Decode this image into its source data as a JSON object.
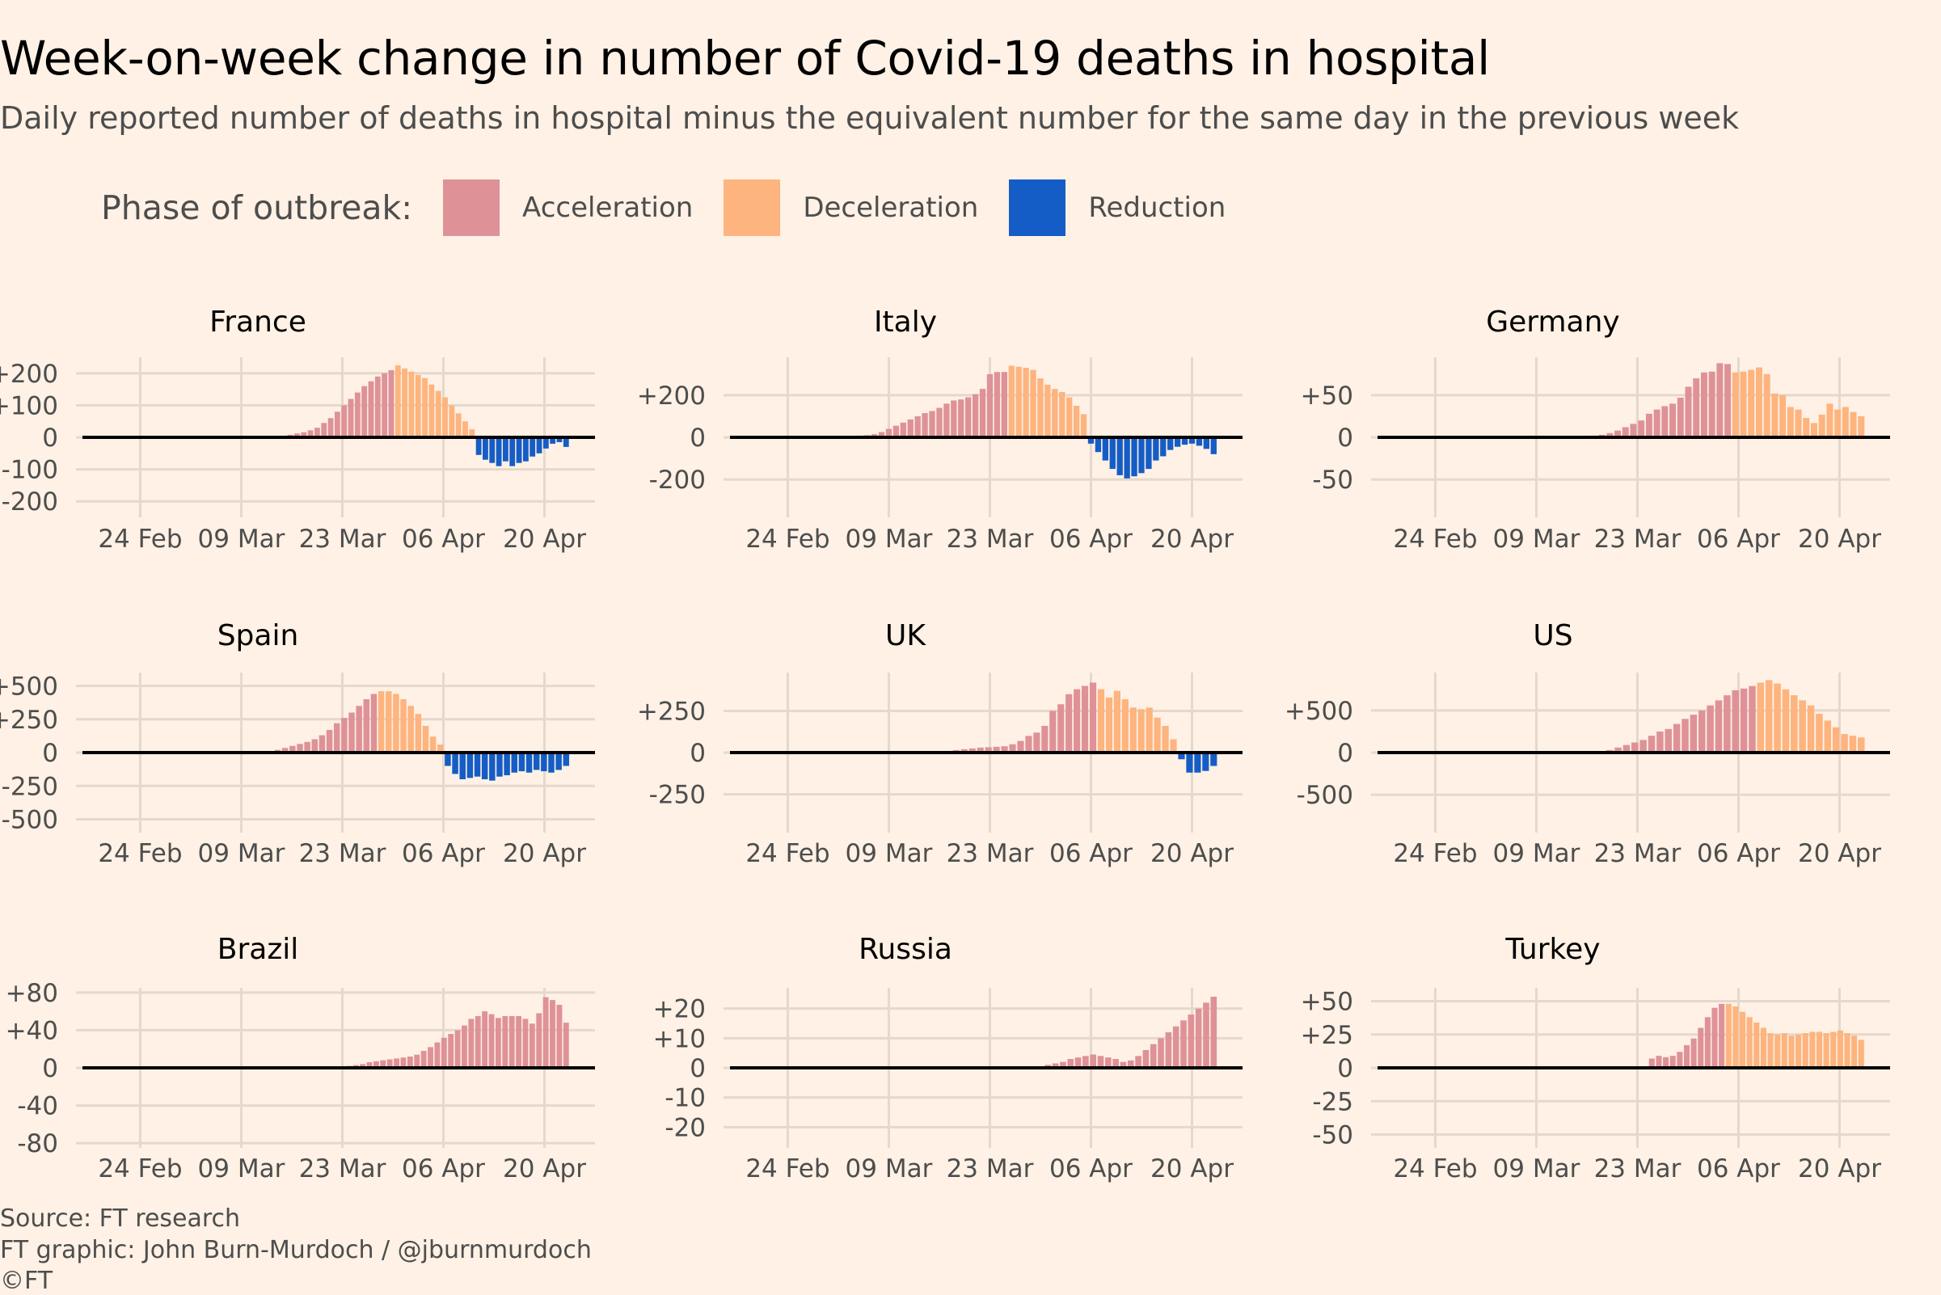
{
  "title": "Week-on-week change in number of Covid-19 deaths in hospital",
  "subtitle": "Daily reported number of deaths in hospital minus the equivalent number for the same day in the previous week",
  "legend": {
    "title": "Phase of outbreak:",
    "items": [
      {
        "label": "Acceleration",
        "color": "#de9298"
      },
      {
        "label": "Deceleration",
        "color": "#fdb47e"
      },
      {
        "label": "Reduction",
        "color": "#155dc6"
      }
    ]
  },
  "colors": {
    "background": "#fff1e5",
    "grid": "#e5d8cc",
    "zero": "#000000",
    "text": "#4d4d4d"
  },
  "footer": {
    "source": "Source: FT research",
    "credit": "FT graphic: John Burn-Murdoch / @jburnmurdoch",
    "copyright": "©FT"
  },
  "chart_data": [
    {
      "type": "bar",
      "title": "France",
      "xlabel": "",
      "ylabel": "",
      "x_ticks": [
        "24 Feb",
        "09 Mar",
        "23 Mar",
        "06 Apr",
        "20 Apr"
      ],
      "y_ticks": [
        "+200",
        "+100",
        "0",
        "-100",
        "-200"
      ],
      "ylim": [
        -250,
        250
      ],
      "grid": true,
      "x_dates": [
        "2020-03-13",
        "2020-04-23"
      ],
      "acceleration": [
        2,
        4,
        5,
        8,
        12,
        16,
        22,
        30,
        45,
        60,
        80,
        100,
        120,
        140,
        160,
        175,
        190,
        200,
        210
      ],
      "deceleration": [
        225,
        215,
        205,
        195,
        185,
        165,
        145,
        125,
        100,
        75,
        50,
        25
      ],
      "reduction": [
        -55,
        -70,
        -80,
        -90,
        -75,
        -90,
        -80,
        -75,
        -60,
        -50,
        -35,
        -20,
        -15,
        -30
      ]
    },
    {
      "type": "bar",
      "title": "Italy",
      "xlabel": "",
      "ylabel": "",
      "x_ticks": [
        "24 Feb",
        "09 Mar",
        "23 Mar",
        "06 Apr",
        "20 Apr"
      ],
      "y_ticks": [
        "+200",
        "0",
        "-200"
      ],
      "ylim": [
        -380,
        380
      ],
      "grid": true,
      "x_dates": [
        "2020-03-03",
        "2020-04-23"
      ],
      "acceleration": [
        3,
        5,
        8,
        10,
        15,
        25,
        40,
        55,
        70,
        85,
        100,
        115,
        125,
        140,
        160,
        175,
        180,
        190,
        205,
        230,
        300,
        310,
        310
      ],
      "deceleration": [
        340,
        335,
        330,
        320,
        280,
        250,
        230,
        215,
        190,
        150,
        110
      ],
      "reduction": [
        -30,
        -70,
        -110,
        -150,
        -180,
        -195,
        -185,
        -170,
        -150,
        -110,
        -90,
        -60,
        -45,
        -35,
        -30,
        -40,
        -55,
        -80
      ]
    },
    {
      "type": "bar",
      "title": "Germany",
      "xlabel": "",
      "ylabel": "",
      "x_ticks": [
        "24 Feb",
        "09 Mar",
        "23 Mar",
        "06 Apr",
        "20 Apr"
      ],
      "y_ticks": [
        "+50",
        "0",
        "-50"
      ],
      "ylim": [
        -95,
        95
      ],
      "grid": true,
      "x_dates": [
        "2020-03-17",
        "2020-04-23"
      ],
      "acceleration": [
        2,
        3,
        5,
        8,
        12,
        16,
        20,
        28,
        33,
        37,
        40,
        47,
        60,
        70,
        77,
        78,
        88,
        87
      ],
      "deceleration": [
        77,
        78,
        80,
        83,
        75,
        52,
        50,
        36,
        33,
        23,
        17,
        27,
        40,
        33,
        36,
        30,
        25
      ]
    },
    {
      "type": "bar",
      "title": "Spain",
      "xlabel": "",
      "ylabel": "",
      "x_ticks": [
        "24 Feb",
        "09 Mar",
        "23 Mar",
        "06 Apr",
        "20 Apr"
      ],
      "y_ticks": [
        "+500",
        "+250",
        "0",
        "-250",
        "-500"
      ],
      "ylim": [
        -600,
        600
      ],
      "grid": true,
      "x_dates": [
        "2020-03-12",
        "2020-04-23"
      ],
      "acceleration": [
        5,
        10,
        20,
        35,
        50,
        65,
        80,
        100,
        130,
        170,
        220,
        260,
        300,
        350,
        400,
        440
      ],
      "deceleration": [
        460,
        460,
        440,
        400,
        350,
        290,
        200,
        120,
        60
      ],
      "reduction": [
        -100,
        -160,
        -200,
        -190,
        -180,
        -200,
        -210,
        -180,
        -170,
        -150,
        -140,
        -150,
        -130,
        -140,
        -150,
        -130,
        -100
      ]
    },
    {
      "type": "bar",
      "title": "UK",
      "xlabel": "",
      "ylabel": "",
      "x_ticks": [
        "24 Feb",
        "09 Mar",
        "23 Mar",
        "06 Apr",
        "20 Apr"
      ],
      "y_ticks": [
        "+250",
        "0",
        "-250"
      ],
      "ylim": [
        -480,
        480
      ],
      "grid": true,
      "x_dates": [
        "2020-03-15",
        "2020-04-23"
      ],
      "acceleration": [
        3,
        5,
        10,
        15,
        20,
        25,
        30,
        32,
        35,
        38,
        50,
        70,
        100,
        120,
        160,
        250,
        290,
        350,
        380,
        400,
        420
      ],
      "deceleration": [
        380,
        330,
        370,
        320,
        270,
        260,
        270,
        210,
        160,
        80
      ],
      "reduction": [
        -40,
        -120,
        -120,
        -110,
        -80
      ]
    },
    {
      "type": "bar",
      "title": "US",
      "xlabel": "",
      "ylabel": "",
      "x_ticks": [
        "24 Feb",
        "09 Mar",
        "23 Mar",
        "06 Apr",
        "20 Apr"
      ],
      "y_ticks": [
        "+500",
        "0",
        "-500"
      ],
      "ylim": [
        -950,
        950
      ],
      "grid": true,
      "x_dates": [
        "2020-03-18",
        "2020-04-23"
      ],
      "acceleration": [
        10,
        30,
        60,
        90,
        120,
        150,
        200,
        250,
        280,
        340,
        400,
        450,
        500,
        560,
        620,
        680,
        740,
        760,
        790
      ],
      "deceleration": [
        830,
        860,
        820,
        750,
        680,
        620,
        560,
        460,
        380,
        300,
        220,
        200,
        180
      ]
    },
    {
      "type": "bar",
      "title": "Brazil",
      "xlabel": "",
      "ylabel": "",
      "x_ticks": [
        "24 Feb",
        "09 Mar",
        "23 Mar",
        "06 Apr",
        "20 Apr"
      ],
      "y_ticks": [
        "+80",
        "0",
        "-40",
        "-80"
      ],
      "y_ticks_full": [
        "+80",
        "+40",
        "0",
        "-40",
        "-80"
      ],
      "ylim": [
        -85,
        85
      ],
      "grid": true,
      "x_dates": [
        "2020-03-23",
        "2020-04-23"
      ],
      "acceleration": [
        1,
        2,
        3,
        4,
        6,
        7,
        8,
        9,
        10,
        11,
        12,
        14,
        18,
        22,
        27,
        32,
        36,
        40,
        45,
        52,
        55,
        60,
        57,
        53,
        55,
        55,
        55,
        52,
        47,
        58,
        75,
        72,
        67,
        48
      ]
    },
    {
      "type": "bar",
      "title": "Russia",
      "xlabel": "",
      "ylabel": "",
      "x_ticks": [
        "24 Feb",
        "09 Mar",
        "23 Mar",
        "06 Apr",
        "20 Apr"
      ],
      "y_ticks": [
        "+20",
        "+10",
        "0",
        "-10",
        "-20"
      ],
      "ylim": [
        -27,
        27
      ],
      "grid": true,
      "x_dates": [
        "2020-03-30",
        "2020-04-23"
      ],
      "acceleration": [
        0.5,
        1,
        1.5,
        2,
        3,
        3.5,
        4,
        4.5,
        4,
        3.5,
        3,
        2,
        2.5,
        4,
        6,
        8,
        10,
        12,
        14,
        16,
        18,
        20,
        22,
        24
      ]
    },
    {
      "type": "bar",
      "title": "Turkey",
      "xlabel": "",
      "ylabel": "",
      "x_ticks": [
        "24 Feb",
        "09 Mar",
        "23 Mar",
        "06 Apr",
        "20 Apr"
      ],
      "y_ticks": [
        "+50",
        "+25",
        "0",
        "-25",
        "-50"
      ],
      "ylim": [
        -60,
        60
      ],
      "grid": true,
      "x_dates": [
        "2020-03-25",
        "2020-04-23"
      ],
      "acceleration": [
        7,
        9,
        8,
        9,
        12,
        17,
        22,
        30,
        38,
        45,
        48
      ],
      "deceleration": [
        48,
        46,
        42,
        38,
        34,
        30,
        26,
        25,
        26,
        24,
        25,
        26,
        27,
        27,
        26,
        27,
        28,
        26,
        24,
        21
      ]
    }
  ]
}
